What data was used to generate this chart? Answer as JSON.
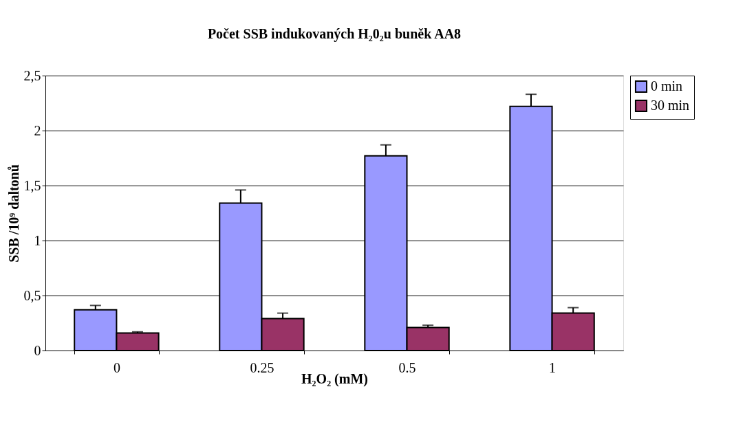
{
  "chart_data": {
    "type": "bar",
    "title": "Počet SSB indukovaných H₂0₂u buněk AA8",
    "xlabel": "H₂O₂ (mM)",
    "ylabel": "SSB /10⁹ daltonů",
    "categories": [
      "0",
      "0.25",
      "0.5",
      "1"
    ],
    "series": [
      {
        "name": "0 min",
        "color": "#9999ff",
        "values": [
          0.37,
          1.34,
          1.77,
          2.22
        ],
        "errors": [
          [
            0.37,
            0.41
          ],
          [
            1.34,
            1.46
          ],
          [
            1.77,
            1.87
          ],
          [
            2.22,
            2.33
          ]
        ]
      },
      {
        "name": "30 min",
        "color": "#993366",
        "values": [
          0.16,
          0.29,
          0.21,
          0.34
        ],
        "errors": [
          [
            0.16,
            0.17
          ],
          [
            0.29,
            0.34
          ],
          [
            0.21,
            0.23
          ],
          [
            0.34,
            0.39
          ]
        ]
      }
    ],
    "ylim": [
      0,
      2.5
    ],
    "yticks": [
      0,
      {
        "value": 0.5,
        "label": "0,5"
      },
      1,
      {
        "value": 1.5,
        "label": "1,5"
      },
      2,
      {
        "value": 2.5,
        "label": "2,5"
      }
    ],
    "grid": "y",
    "legend": "right"
  }
}
